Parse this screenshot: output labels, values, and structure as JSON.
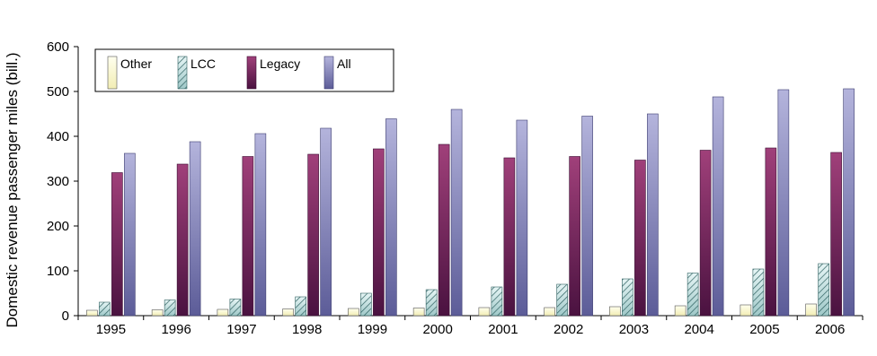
{
  "chart_data": {
    "type": "bar",
    "title": "",
    "xlabel": "",
    "ylabel": "Domestic revenue passenger miles (bill.)",
    "ylim": [
      0,
      600
    ],
    "yticks": [
      0,
      100,
      200,
      300,
      400,
      500,
      600
    ],
    "grid": false,
    "legend_position": "top-left",
    "categories": [
      "1995",
      "1996",
      "1997",
      "1998",
      "1999",
      "2000",
      "2001",
      "2002",
      "2003",
      "2004",
      "2005",
      "2006"
    ],
    "series": [
      {
        "name": "Other",
        "values": [
          12,
          13,
          14,
          15,
          16,
          17,
          18,
          18,
          20,
          22,
          24,
          26
        ],
        "fill": "#ffffcc",
        "pattern": "solid"
      },
      {
        "name": "LCC",
        "values": [
          30,
          35,
          37,
          42,
          50,
          58,
          64,
          70,
          82,
          95,
          104,
          116
        ],
        "fill": "#cce6e6",
        "pattern": "hatch"
      },
      {
        "name": "Legacy",
        "values": [
          319,
          338,
          355,
          360,
          372,
          382,
          352,
          355,
          347,
          369,
          374,
          364
        ],
        "fill": "#993366",
        "pattern": "solid"
      },
      {
        "name": "All",
        "values": [
          362,
          388,
          406,
          418,
          439,
          460,
          436,
          445,
          450,
          488,
          504,
          506
        ],
        "fill": "#9999cc",
        "pattern": "solid"
      }
    ]
  }
}
